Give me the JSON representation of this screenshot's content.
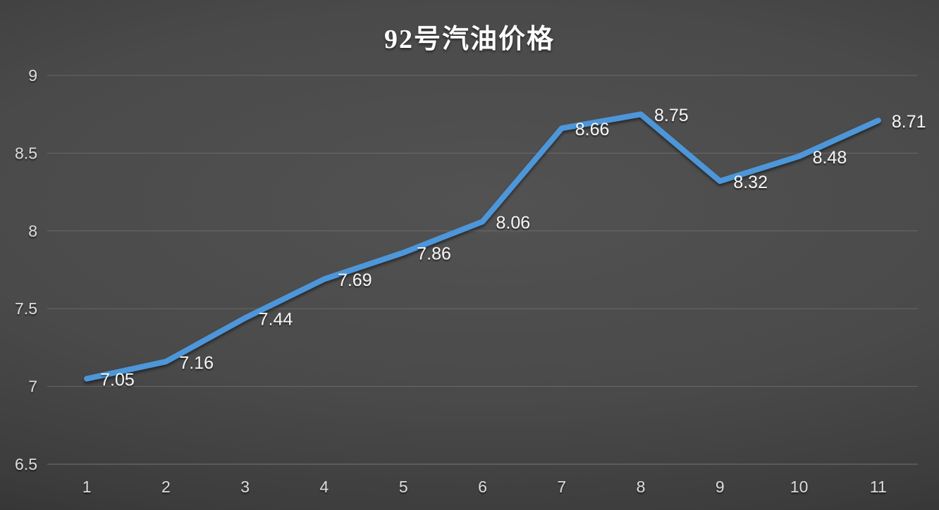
{
  "chart_data": {
    "type": "line",
    "title": "92号汽油价格",
    "categories": [
      "1",
      "2",
      "3",
      "4",
      "5",
      "6",
      "7",
      "8",
      "9",
      "10",
      "11"
    ],
    "values": [
      7.05,
      7.16,
      7.44,
      7.69,
      7.86,
      8.06,
      8.66,
      8.75,
      8.32,
      8.48,
      8.71
    ],
    "point_labels": [
      "7.05",
      "7.16",
      "7.44",
      "7.69",
      "7.86",
      "8.06",
      "8.66",
      "8.75",
      "8.32",
      "8.48",
      "8.71"
    ],
    "yticks": [
      "9",
      "8.5",
      "8",
      "7.5",
      "7",
      "6.5"
    ],
    "ylim": [
      6.5,
      9
    ],
    "xlabel": "",
    "ylabel": "",
    "grid": "horizontal",
    "legend": "none",
    "colors": {
      "line": "#4d96d9",
      "data_label_text": "#f4f4f4",
      "axis_text": "#dadada",
      "gridline": "#9b9b9b",
      "baseline": "#a8a8a8",
      "background_center": "#525252",
      "background_edge": "#202020",
      "title_text": "#fdfdfd"
    }
  }
}
